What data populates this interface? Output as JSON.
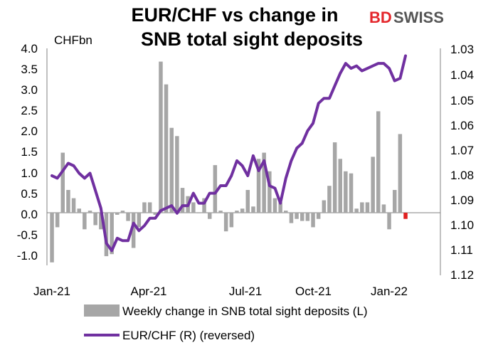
{
  "brand": {
    "bd": "BD",
    "swiss": "SWISS"
  },
  "colors": {
    "bars": "#a6a6a6",
    "last_bar": "#e02020",
    "line": "#7030a0",
    "axis": "#808080",
    "brand_red": "#e4262b",
    "brand_gray": "#555555"
  },
  "chart_data": {
    "type": "bar+line",
    "title": [
      "EUR/CHF vs change in",
      "SNB total sight deposits"
    ],
    "left_axis": {
      "unit": "CHFbn",
      "range": [
        -1.5,
        4.0
      ],
      "ticks": [
        "4.0",
        "3.5",
        "3.0",
        "2.5",
        "2.0",
        "1.5",
        "1.0",
        "0.5",
        "0.0",
        "-0.5",
        "-1.0"
      ]
    },
    "right_axis": {
      "range": [
        1.03,
        1.12
      ],
      "reversed": true,
      "ticks": [
        "1.03",
        "1.04",
        "1.05",
        "1.06",
        "1.07",
        "1.08",
        "1.09",
        "1.10",
        "1.11",
        "1.12"
      ]
    },
    "x_ticks": [
      "Jan-21",
      "Apr-21",
      "Jul-21",
      "Oct-21",
      "Jan-22"
    ],
    "series": [
      {
        "name": "Weekly change in SNB total sight deposits (L)",
        "kind": "bar",
        "values": [
          -1.2,
          -0.35,
          1.45,
          0.55,
          0.35,
          0.1,
          -0.4,
          0.05,
          -0.3,
          -0.4,
          -1.05,
          -1.0,
          -0.05,
          0.05,
          -0.2,
          -0.85,
          -0.35,
          0.25,
          0.25,
          -0.05,
          3.65,
          3.1,
          2.05,
          1.85,
          0.6,
          0.4,
          0.25,
          0.0,
          0.35,
          -0.15,
          1.15,
          0.05,
          -0.45,
          -0.35,
          0.05,
          0.1,
          0.55,
          0.15,
          1.3,
          1.45,
          1.0,
          0.35,
          0.25,
          0.05,
          -0.25,
          -0.15,
          -0.2,
          -0.2,
          -0.35,
          -0.15,
          0.3,
          0.65,
          1.7,
          1.3,
          1.0,
          0.95,
          0.1,
          0.25,
          0.25,
          1.35,
          2.45,
          0.2,
          -0.4,
          0.55,
          1.9,
          -0.15
        ]
      },
      {
        "name": "EUR/CHF (R) (reversed)",
        "kind": "line",
        "values": [
          1.081,
          1.082,
          1.079,
          1.076,
          1.077,
          1.08,
          1.082,
          1.08,
          1.087,
          1.094,
          1.108,
          1.111,
          1.106,
          1.107,
          1.107,
          1.1,
          1.103,
          1.101,
          1.098,
          1.098,
          1.095,
          1.094,
          1.093,
          1.096,
          1.093,
          1.093,
          1.088,
          1.092,
          1.092,
          1.088,
          1.088,
          1.085,
          1.085,
          1.081,
          1.075,
          1.077,
          1.081,
          1.073,
          1.079,
          1.075,
          1.085,
          1.086,
          1.092,
          1.082,
          1.075,
          1.07,
          1.068,
          1.063,
          1.06,
          1.052,
          1.05,
          1.05,
          1.045,
          1.04,
          1.036,
          1.038,
          1.037,
          1.039,
          1.038,
          1.037,
          1.036,
          1.036,
          1.038,
          1.043,
          1.042,
          1.033
        ]
      }
    ],
    "legend": [
      "Weekly change in SNB total sight deposits (L)",
      "EUR/CHF (R) (reversed)"
    ]
  }
}
